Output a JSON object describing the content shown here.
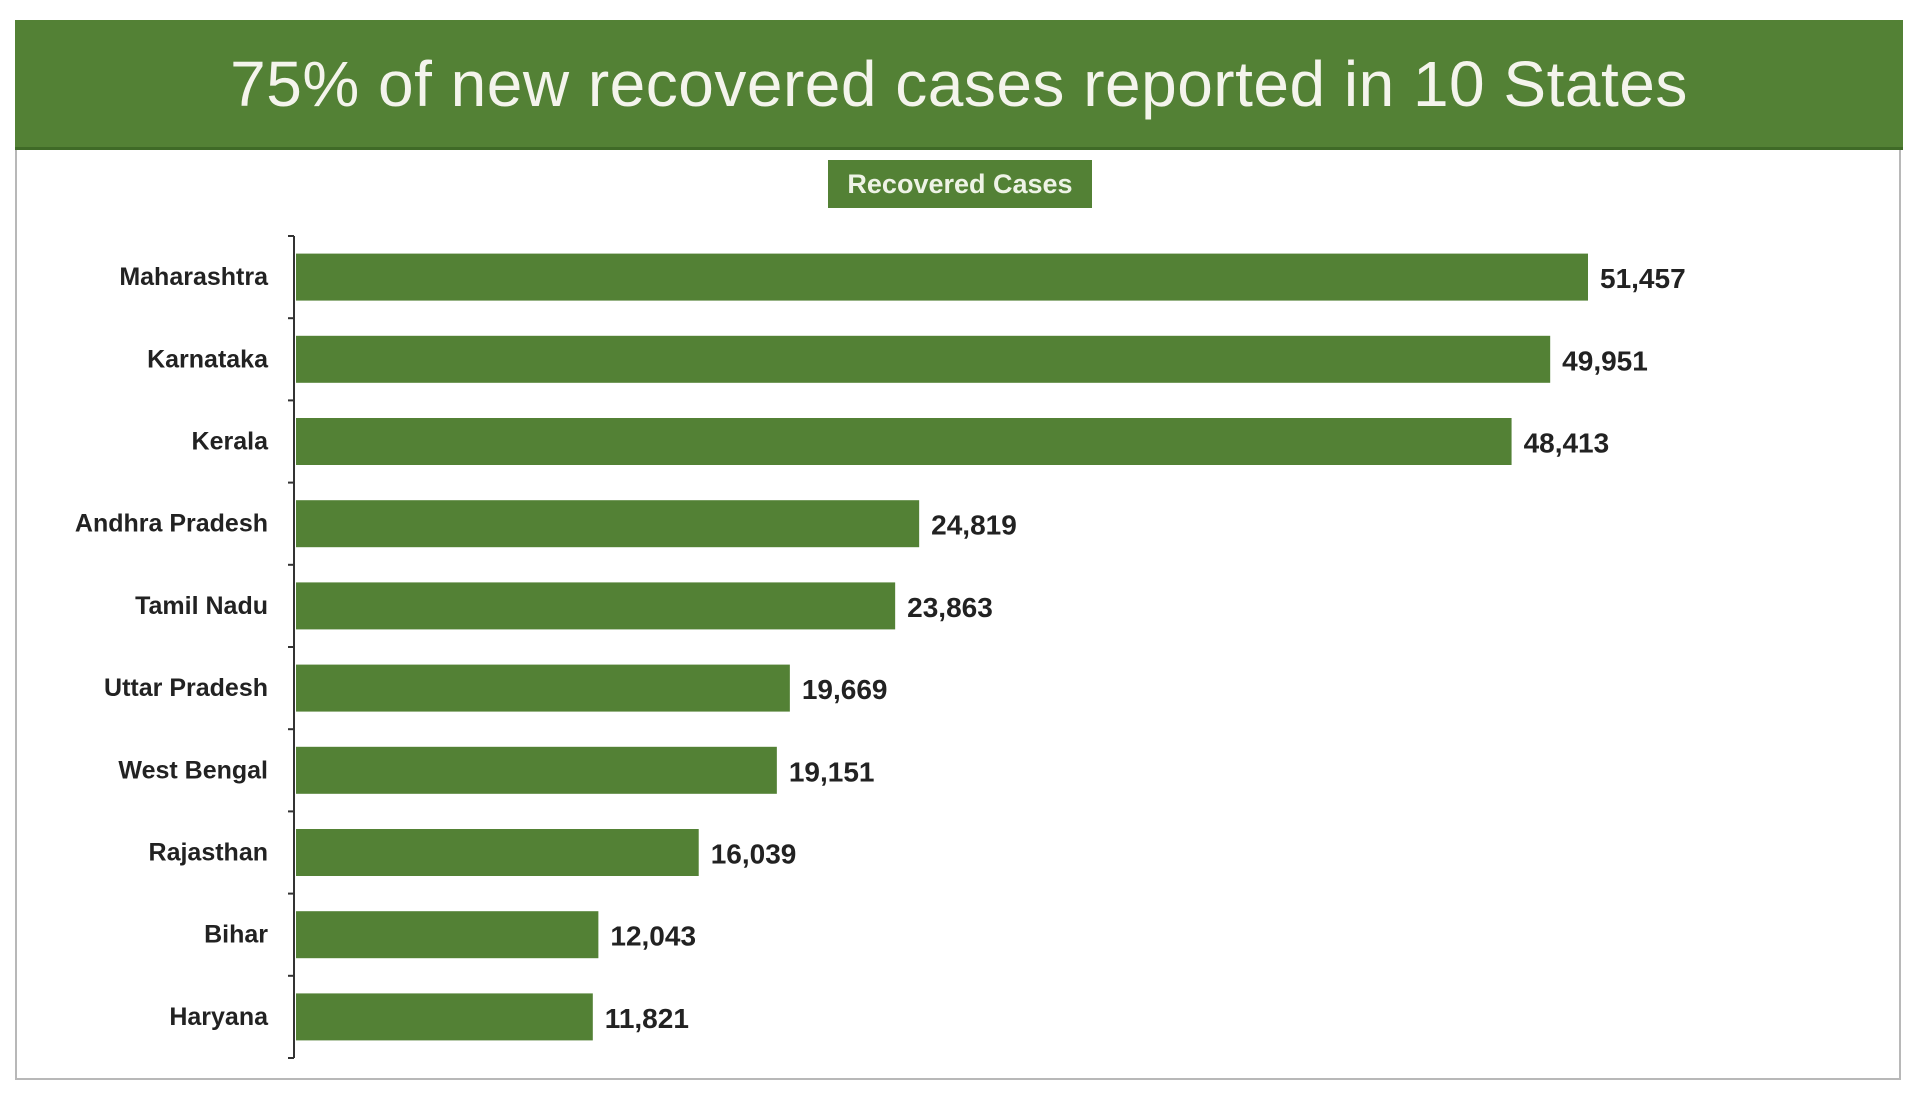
{
  "chart_data": {
    "type": "bar",
    "orientation": "horizontal",
    "title": "75% of new recovered cases reported in 10 States",
    "legend": "Recovered Cases",
    "legend_placement": "top-center",
    "categories": [
      "Maharashtra",
      "Karnataka",
      "Kerala",
      "Andhra Pradesh",
      "Tamil Nadu",
      "Uttar Pradesh",
      "West Bengal",
      "Rajasthan",
      "Bihar",
      "Haryana"
    ],
    "values": [
      51457,
      49951,
      48413,
      24819,
      23863,
      19669,
      19151,
      16039,
      12043,
      11821
    ],
    "value_labels": [
      "51,457",
      "49,951",
      "48,413",
      "24,819",
      "23,863",
      "19,669",
      "19,151",
      "16,039",
      "12,043",
      "11,821"
    ],
    "grid": false,
    "colors": {
      "bar": "#538135",
      "header": "#538135",
      "title_text": "#f4f4ec"
    }
  }
}
